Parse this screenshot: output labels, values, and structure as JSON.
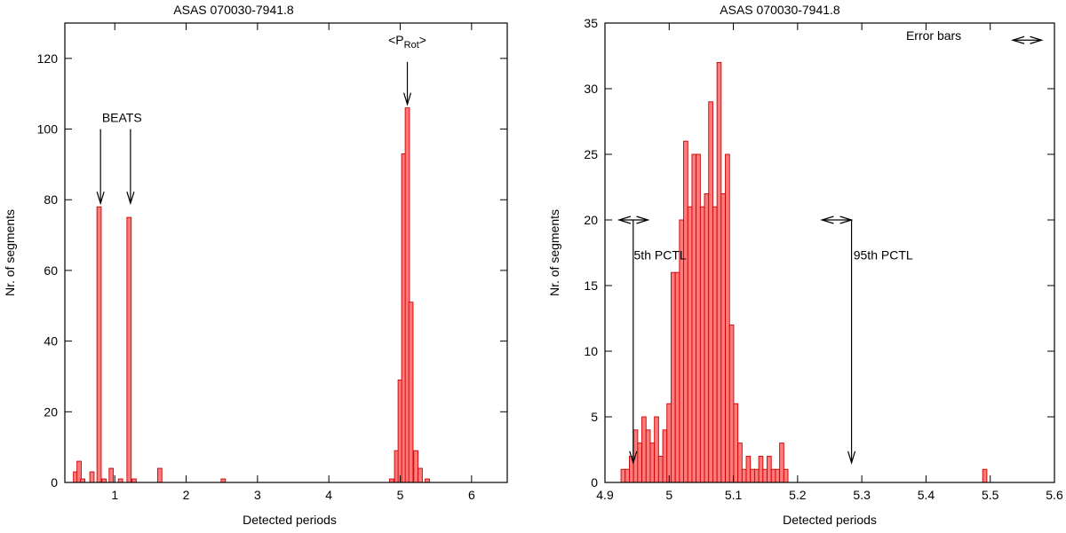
{
  "colors": {
    "bar_fill": "#ff7b7b",
    "bar_stroke": "#cc0000",
    "axis": "#000000"
  },
  "chart_data": [
    {
      "type": "bar",
      "title": "ASAS 070030-7941.8",
      "xlabel": "Detected periods",
      "ylabel": "Nr. of segments",
      "xlim": [
        0.3,
        6.5
      ],
      "ylim": [
        0,
        130
      ],
      "x_ticks": [
        "1",
        "2",
        "3",
        "4",
        "5",
        "6"
      ],
      "y_ticks": [
        "0",
        "20",
        "40",
        "60",
        "80",
        "100",
        "120"
      ],
      "bin_width": 0.06,
      "bins": [
        {
          "x": 0.45,
          "y": 3
        },
        {
          "x": 0.5,
          "y": 6
        },
        {
          "x": 0.55,
          "y": 1
        },
        {
          "x": 0.68,
          "y": 3
        },
        {
          "x": 0.78,
          "y": 78
        },
        {
          "x": 0.85,
          "y": 1
        },
        {
          "x": 0.95,
          "y": 4
        },
        {
          "x": 1.08,
          "y": 1
        },
        {
          "x": 1.2,
          "y": 75
        },
        {
          "x": 1.27,
          "y": 1
        },
        {
          "x": 1.63,
          "y": 4
        },
        {
          "x": 2.52,
          "y": 1
        },
        {
          "x": 4.88,
          "y": 1
        },
        {
          "x": 4.95,
          "y": 9
        },
        {
          "x": 5.0,
          "y": 29
        },
        {
          "x": 5.05,
          "y": 93
        },
        {
          "x": 5.1,
          "y": 106
        },
        {
          "x": 5.15,
          "y": 51
        },
        {
          "x": 5.22,
          "y": 9
        },
        {
          "x": 5.28,
          "y": 4
        },
        {
          "x": 5.38,
          "y": 1
        }
      ],
      "annotations": [
        {
          "text": "BEATS",
          "x": 1.1,
          "y": 102
        },
        {
          "text": "<P",
          "sub": "Rot",
          "suffix": ">",
          "x": 5.1,
          "y": 124
        }
      ],
      "arrows": [
        {
          "x": 0.8,
          "y_from": 100,
          "y_to": 79
        },
        {
          "x": 1.22,
          "y_from": 100,
          "y_to": 79
        },
        {
          "x": 5.1,
          "y_from": 119,
          "y_to": 107
        }
      ],
      "grid": false
    },
    {
      "type": "bar",
      "title": "ASAS 070030-7941.8",
      "xlabel": "Detected periods",
      "ylabel": "Nr. of segments",
      "xlim": [
        4.9,
        5.6
      ],
      "ylim": [
        0,
        35
      ],
      "x_ticks": [
        "4.9",
        "5",
        "5.1",
        "5.2",
        "5.3",
        "5.4",
        "5.5",
        "5.6"
      ],
      "y_ticks": [
        "0",
        "5",
        "10",
        "15",
        "20",
        "25",
        "30",
        "35"
      ],
      "bin_start": 4.925,
      "bin_width": 0.0065,
      "counts": [
        1,
        1,
        2,
        4,
        3,
        5,
        4,
        3,
        5,
        2,
        4,
        6,
        16,
        16,
        20,
        26,
        21,
        25,
        25,
        21,
        22,
        29,
        21,
        32,
        22,
        25,
        12,
        6,
        3,
        1,
        2,
        1,
        1,
        2,
        1,
        2,
        1,
        1,
        3,
        1
      ],
      "extra_bins": [
        {
          "x": 5.4915,
          "y": 1
        }
      ],
      "annotations": [
        {
          "text": "5th PCTL",
          "x": 4.945,
          "y": 17
        },
        {
          "text": "95th PCTL",
          "x": 5.287,
          "y": 17
        },
        {
          "text": "Error bars",
          "x": 5.455,
          "y": 33.7
        }
      ],
      "vertical_arrows": [
        {
          "x": 4.944,
          "y_from": 20,
          "y_to": 1.5
        },
        {
          "x": 5.284,
          "y_from": 20,
          "y_to": 1.5
        }
      ],
      "double_arrows": [
        {
          "x1": 4.922,
          "x2": 4.967,
          "y": 20
        },
        {
          "x1": 5.238,
          "x2": 5.284,
          "y": 20
        },
        {
          "x1": 5.535,
          "x2": 5.58,
          "y": 33.7
        }
      ],
      "grid": false
    }
  ]
}
